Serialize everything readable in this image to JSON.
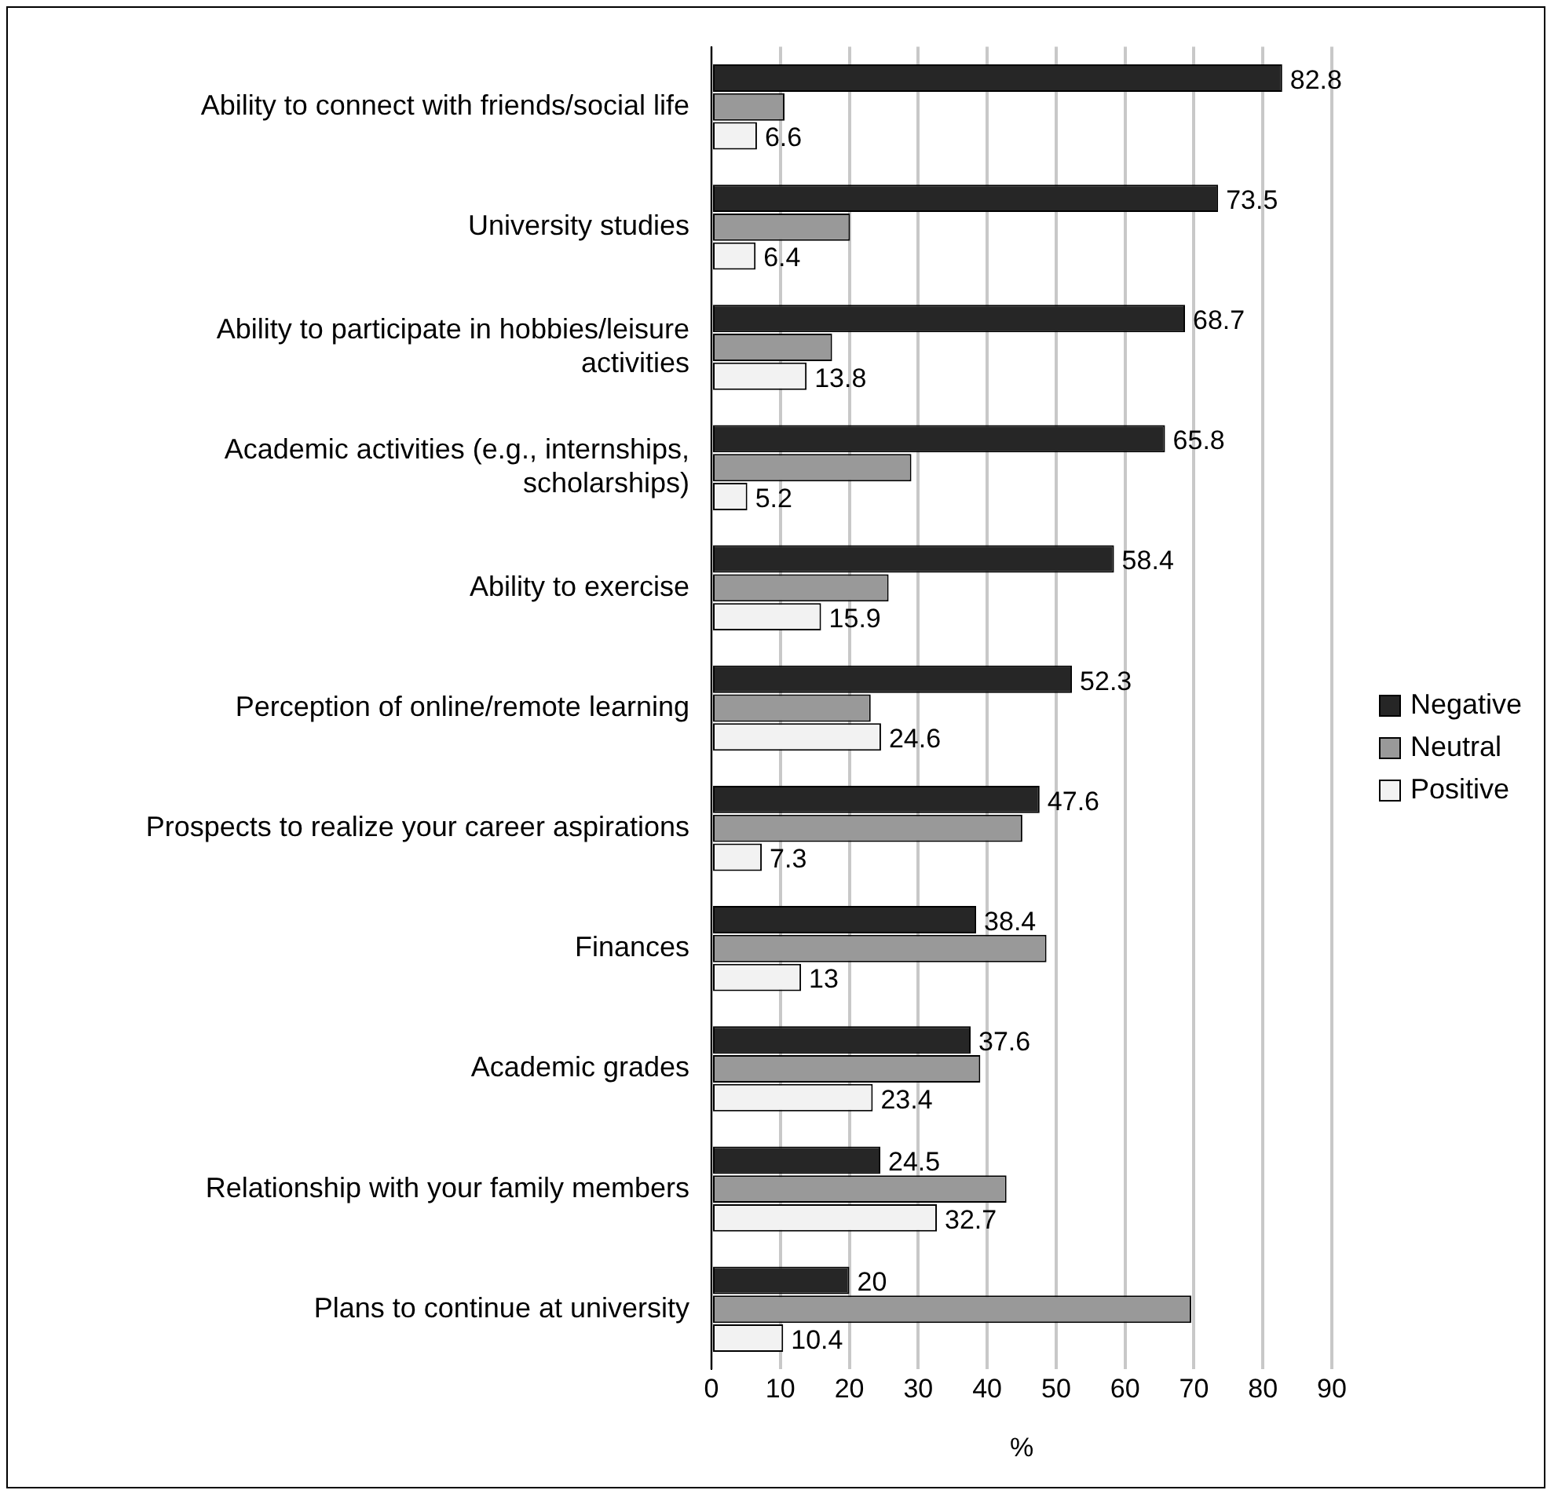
{
  "chart_data": {
    "type": "bar",
    "orientation": "horizontal",
    "xlabel": "%",
    "categories": [
      "Ability to connect with friends/social life",
      "University studies",
      "Ability to participate in hobbies/leisure activities",
      "Academic activities (e.g., internships, scholarships)",
      "Ability to exercise",
      "Perception of online/remote learning",
      "Prospects to realize your career aspirations",
      "Finances",
      "Academic grades",
      "Relationship with your family members",
      "Plans to continue at university"
    ],
    "series": [
      {
        "name": "Negative",
        "color": "#262626",
        "values": [
          82.8,
          73.5,
          68.7,
          65.8,
          58.4,
          52.3,
          47.6,
          38.4,
          37.6,
          24.5,
          20
        ],
        "value_labels": [
          "82.8",
          "73.5",
          "68.7",
          "65.8",
          "58.4",
          "52.3",
          "47.6",
          "38.4",
          "37.6",
          "24.5",
          "20"
        ]
      },
      {
        "name": "Neutral",
        "color": "#999999",
        "values": [
          10.6,
          20.1,
          17.5,
          29,
          25.7,
          23.1,
          45.1,
          48.6,
          39,
          42.8,
          69.6
        ]
      },
      {
        "name": "Positive",
        "color": "#f2f2f2",
        "values": [
          6.6,
          6.4,
          13.8,
          5.2,
          15.9,
          24.6,
          7.3,
          13,
          23.4,
          32.7,
          10.4
        ],
        "value_labels": [
          "6.6",
          "6.4",
          "13.8",
          "5.2",
          "15.9",
          "24.6",
          "7.3",
          "13",
          "23.4",
          "32.7",
          "10.4"
        ]
      }
    ],
    "xlim": [
      0,
      90
    ],
    "xticks": [
      0,
      10,
      20,
      30,
      40,
      50,
      60,
      70,
      80,
      90
    ],
    "grid": "x",
    "legend": "right"
  }
}
